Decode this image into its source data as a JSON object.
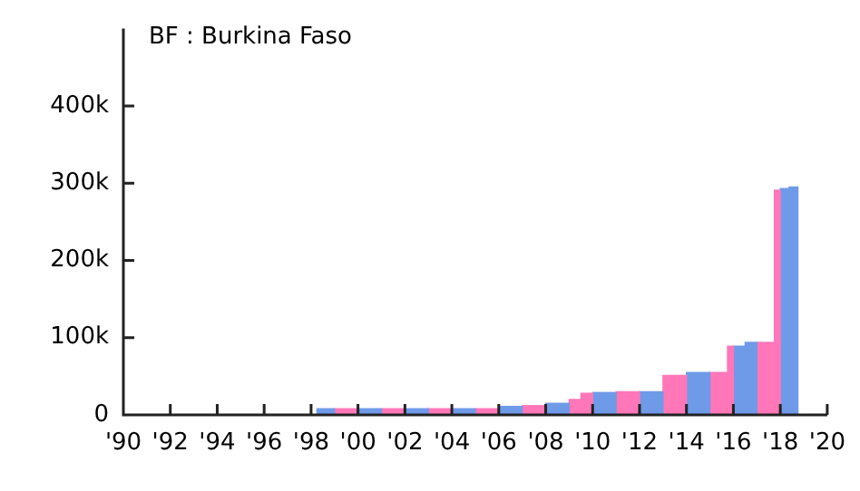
{
  "chart_data": {
    "type": "histogram",
    "title": "BF : Burkina Faso",
    "bins": [
      1998.25,
      1999,
      2000,
      2001,
      2002,
      2003,
      2004,
      2005,
      2006,
      2007,
      2008,
      2009,
      2009.5,
      2010,
      2011,
      2012,
      2013,
      2014,
      2015,
      2015.75,
      2016,
      2016.5,
      2017,
      2017.75,
      2018,
      2018.375,
      2018.75
    ],
    "values": [
      8000,
      8000,
      8000,
      8000,
      8000,
      8000,
      8000,
      8000,
      11000,
      12000,
      15000,
      20000,
      28000,
      29000,
      30000,
      30000,
      51000,
      55000,
      55000,
      89000,
      89000,
      94000,
      94000,
      291000,
      293000,
      295000
    ],
    "colors": [
      "#6f9ae8",
      "#ff77b8",
      "#6f9ae8",
      "#ff77b8",
      "#6f9ae8",
      "#ff77b8",
      "#6f9ae8",
      "#ff77b8",
      "#6f9ae8",
      "#ff77b8",
      "#6f9ae8",
      "#ff77b8",
      "#ff77b8",
      "#6f9ae8",
      "#ff77b8",
      "#6f9ae8",
      "#ff77b8",
      "#6f9ae8",
      "#ff77b8",
      "#ff77b8",
      "#6f9ae8",
      "#6f9ae8",
      "#ff77b8",
      "#ff77b8",
      "#6f9ae8",
      "#6f9ae8"
    ],
    "xlim": [
      1990,
      2020
    ],
    "xticks": [
      {
        "value": 1990,
        "label": "'90"
      },
      {
        "value": 1992,
        "label": "'92"
      },
      {
        "value": 1994,
        "label": "'94"
      },
      {
        "value": 1996,
        "label": "'96"
      },
      {
        "value": 1998,
        "label": "'98"
      },
      {
        "value": 2000,
        "label": "'00"
      },
      {
        "value": 2002,
        "label": "'02"
      },
      {
        "value": 2004,
        "label": "'04"
      },
      {
        "value": 2006,
        "label": "'06"
      },
      {
        "value": 2008,
        "label": "'08"
      },
      {
        "value": 2010,
        "label": "'10"
      },
      {
        "value": 2012,
        "label": "'12"
      },
      {
        "value": 2014,
        "label": "'14"
      },
      {
        "value": 2016,
        "label": "'16"
      },
      {
        "value": 2018,
        "label": "'18"
      },
      {
        "value": 2020,
        "label": "'20"
      }
    ],
    "ylim": [
      0,
      500000
    ],
    "yticks": [
      0,
      {
        "value": 100000,
        "label": "100k"
      },
      {
        "value": 200000,
        "label": "200k"
      },
      {
        "value": 300000,
        "label": "300k"
      },
      {
        "value": 400000,
        "label": "400k"
      }
    ],
    "grid": false,
    "legend": false
  }
}
